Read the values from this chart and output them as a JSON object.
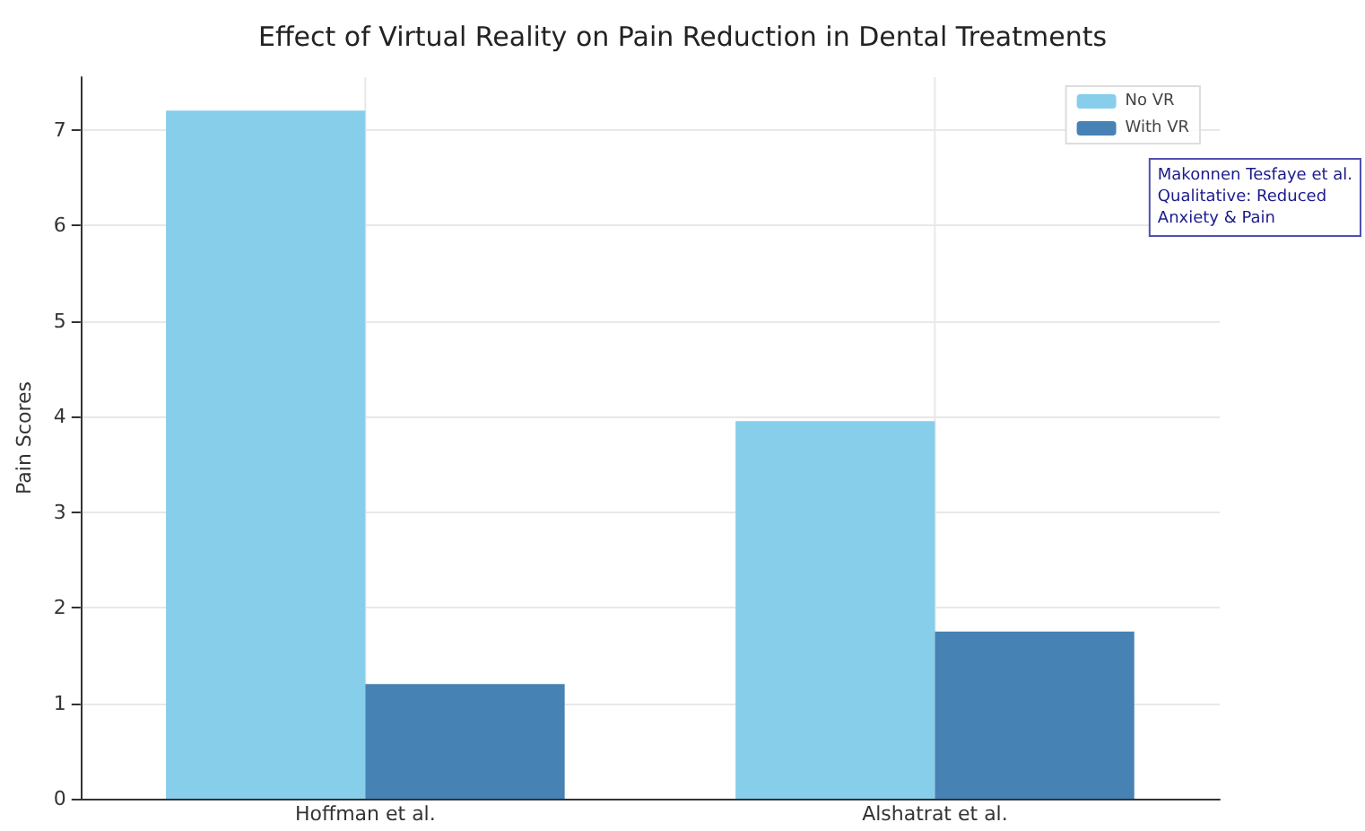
{
  "chart_data": {
    "type": "bar",
    "title": "Effect of Virtual Reality on Pain Reduction in Dental Treatments",
    "ylabel": "Pain Scores",
    "categories": [
      "Hoffman et al.",
      "Alshatrat et al."
    ],
    "series": [
      {
        "name": "No VR",
        "color": "#87ceeb",
        "values": [
          7.2,
          3.95
        ]
      },
      {
        "name": "With VR",
        "color": "#4682b4",
        "values": [
          1.2,
          1.75
        ]
      }
    ],
    "ylim": [
      0,
      7.55
    ],
    "yticks": [
      0,
      1,
      2,
      3,
      4,
      5,
      6,
      7
    ],
    "grid": true,
    "legend": "top right",
    "annotations": [
      "Makonnen Tesfaye et al.\nQualitative: Reduced\nAnxiety & Pain"
    ]
  }
}
